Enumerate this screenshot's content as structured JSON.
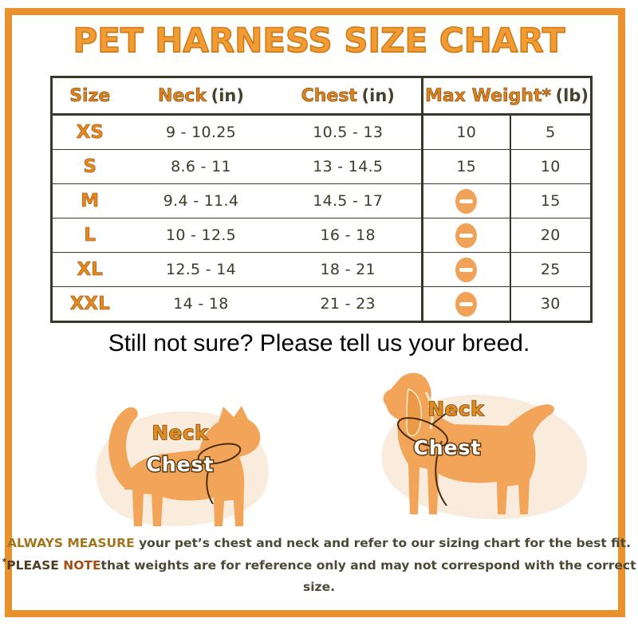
{
  "title": "PET HARNESS SIZE CHART",
  "table": {
    "headers": {
      "size": "Size",
      "neck_main": "Neck",
      "neck_unit": "(in)",
      "chest_main": "Chest",
      "chest_unit": "(in)",
      "weight_main": "Max Weight*",
      "weight_unit": "(lb)"
    },
    "rows": [
      {
        "size": "XS",
        "neck": "9 - 10.25",
        "chest": "10.5 - 13",
        "weight_cat": "10",
        "weight_dog": "5"
      },
      {
        "size": "S",
        "neck": "8.6 - 11",
        "chest": "13 - 14.5",
        "weight_cat": "15",
        "weight_dog": "10"
      },
      {
        "size": "M",
        "neck": "9.4 - 11.4",
        "chest": "14.5 - 17",
        "weight_cat": "minus",
        "weight_dog": "15"
      },
      {
        "size": "L",
        "neck": "10 - 12.5",
        "chest": "16 - 18",
        "weight_cat": "minus",
        "weight_dog": "20"
      },
      {
        "size": "XL",
        "neck": "12.5 - 14",
        "chest": "18 - 21",
        "weight_cat": "minus",
        "weight_dog": "25"
      },
      {
        "size": "XXL",
        "neck": "14 - 18",
        "chest": "21 - 23",
        "weight_cat": "minus",
        "weight_dog": "30"
      }
    ],
    "minus_icon": "minus-icon"
  },
  "subtitle": "Still not sure? Please tell us your breed.",
  "diagrams": {
    "cat": {
      "neck_label": "Neck",
      "chest_label": "Chest"
    },
    "dog": {
      "neck_label": "Neck",
      "chest_label": "Chest"
    }
  },
  "footer": {
    "line1_bold": "ALWAYS MEASURE",
    "line1_rest": " your pet’s chest and neck and refer to our sizing chart for the best fit.",
    "line2_sup": "*",
    "line2_bold1": "PLEASE ",
    "line2_bold2": "NOTE",
    "line2_rest": "that weights are for reference only and may not correspond with the correct size."
  },
  "colors": {
    "frame_orange": "#E8912D",
    "title_orange": "#F29B33",
    "table_accent_orange": "#DE831C",
    "table_border_dark": "#393828",
    "minus_icon_orange": "#F0A258",
    "animal_body_orange": "#F2A459",
    "blob_cream": "#F9ECDD",
    "footer_gold": "#A1761B",
    "footer_rust": "#A34E15"
  }
}
